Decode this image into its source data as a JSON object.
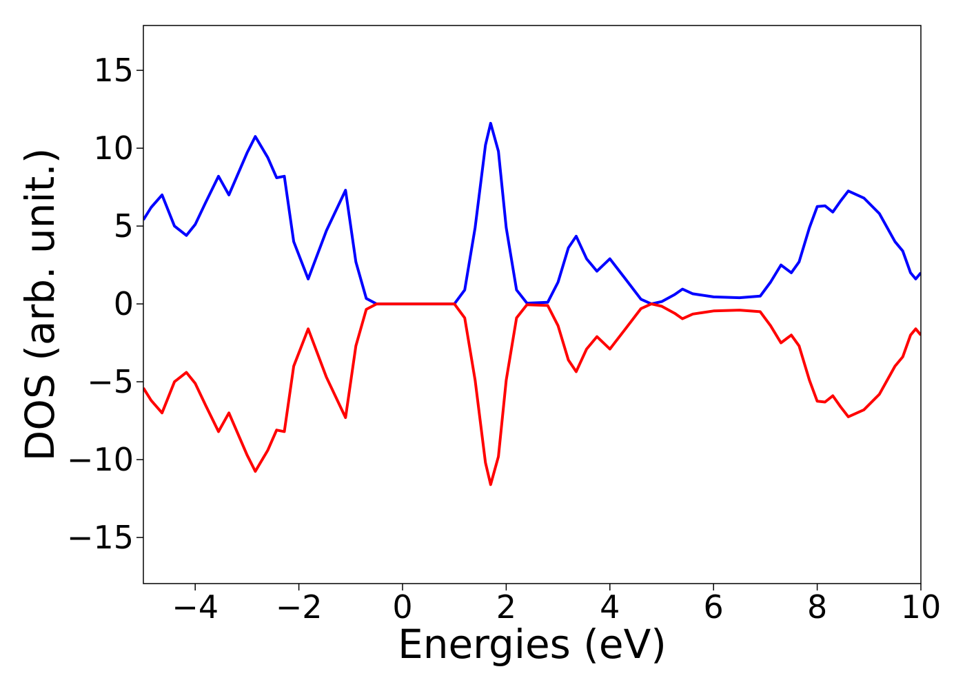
{
  "chart_data": {
    "type": "line",
    "xlabel": "Energies (eV)",
    "ylabel": "DOS (arb. unit.)",
    "x": [
      -5.0,
      -4.85,
      -4.64,
      -4.4,
      -4.17,
      -4.0,
      -3.8,
      -3.55,
      -3.35,
      -3.0,
      -2.84,
      -2.6,
      -2.43,
      -2.28,
      -2.1,
      -1.82,
      -1.47,
      -1.1,
      -0.9,
      -0.7,
      -0.5,
      0.0,
      0.5,
      1.0,
      1.2,
      1.4,
      1.6,
      1.7,
      1.85,
      2.0,
      2.2,
      2.4,
      2.8,
      3.0,
      3.2,
      3.35,
      3.55,
      3.75,
      4.0,
      4.3,
      4.6,
      4.8,
      5.0,
      5.25,
      5.4,
      5.6,
      6.0,
      6.5,
      6.9,
      7.1,
      7.3,
      7.5,
      7.65,
      7.85,
      8.0,
      8.15,
      8.3,
      8.45,
      8.6,
      8.9,
      9.2,
      9.5,
      9.65,
      9.8,
      9.9,
      10.0
    ],
    "series": [
      {
        "color": "#0000ff",
        "values": [
          5.4,
          6.2,
          7.0,
          5.0,
          4.4,
          5.1,
          6.5,
          8.2,
          7.0,
          9.7,
          10.75,
          9.4,
          8.1,
          8.2,
          4.0,
          1.6,
          4.7,
          7.3,
          2.7,
          0.35,
          0,
          0,
          0,
          0,
          0.9,
          4.9,
          10.2,
          11.6,
          9.8,
          4.9,
          0.9,
          0.05,
          0.1,
          1.4,
          3.6,
          4.35,
          2.9,
          2.1,
          2.9,
          1.6,
          0.3,
          0,
          0.15,
          0.6,
          0.95,
          0.65,
          0.45,
          0.4,
          0.5,
          1.4,
          2.5,
          2.0,
          2.7,
          4.9,
          6.25,
          6.3,
          5.9,
          6.6,
          7.25,
          6.8,
          5.8,
          4.0,
          3.4,
          2.0,
          1.6,
          2.0
        ]
      },
      {
        "color": "#ff0000",
        "values": [
          -5.4,
          -6.2,
          -7.0,
          -5.0,
          -4.4,
          -5.1,
          -6.5,
          -8.2,
          -7.0,
          -9.7,
          -10.75,
          -9.4,
          -8.1,
          -8.2,
          -4.0,
          -1.6,
          -4.7,
          -7.3,
          -2.7,
          -0.35,
          0,
          0,
          0,
          0,
          -0.9,
          -4.9,
          -10.2,
          -11.6,
          -9.8,
          -4.9,
          -0.9,
          -0.05,
          -0.1,
          -1.4,
          -3.6,
          -4.35,
          -2.9,
          -2.1,
          -2.9,
          -1.6,
          -0.3,
          0,
          -0.15,
          -0.6,
          -0.95,
          -0.65,
          -0.45,
          -0.4,
          -0.5,
          -1.4,
          -2.5,
          -2.0,
          -2.7,
          -4.9,
          -6.25,
          -6.3,
          -5.9,
          -6.6,
          -7.25,
          -6.8,
          -5.8,
          -4.0,
          -3.4,
          -2.0,
          -1.6,
          -2.0
        ]
      }
    ],
    "xlim": [
      -5,
      10
    ],
    "xticks": [
      {
        "value": -4,
        "label": "−4"
      },
      {
        "value": -2,
        "label": "−2"
      },
      0,
      2,
      4,
      6,
      8,
      10
    ],
    "ylim": [
      -17.96,
      17.88
    ],
    "yticks": [
      {
        "value": -15,
        "label": "−15"
      },
      {
        "value": -10,
        "label": "−10"
      },
      {
        "value": -5,
        "label": "−5"
      },
      0,
      5,
      10,
      15
    ]
  }
}
